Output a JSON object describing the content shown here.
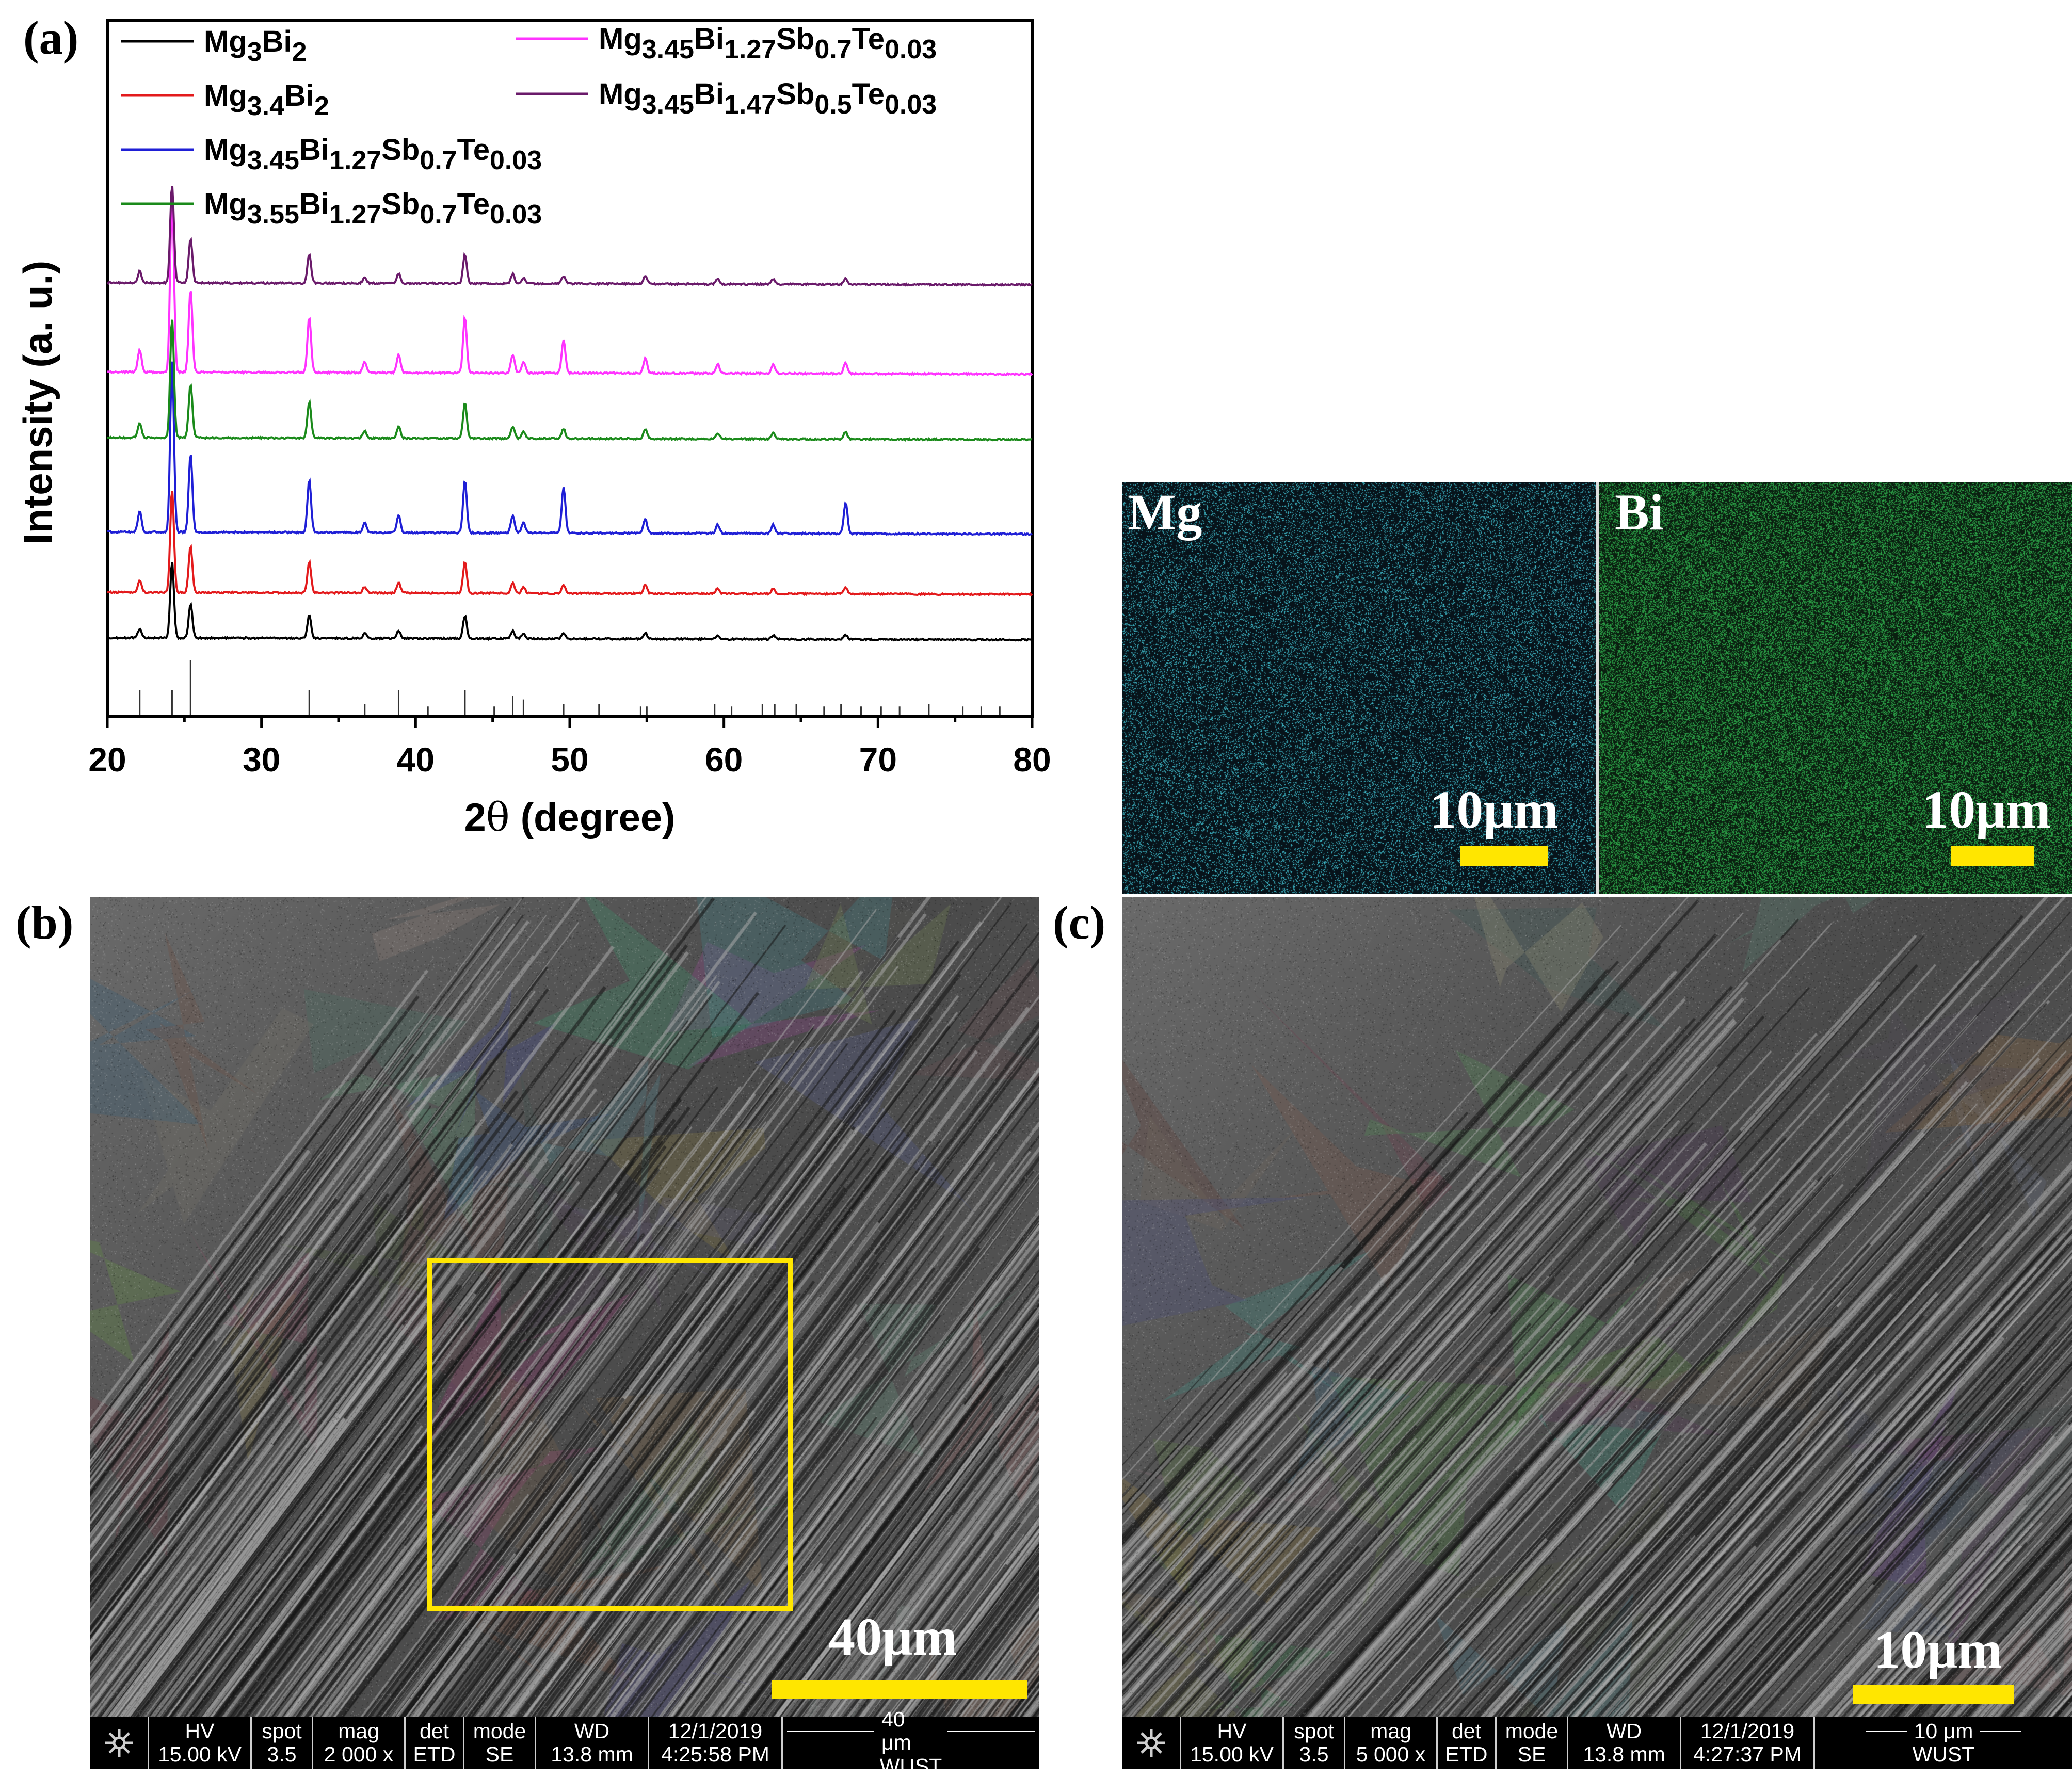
{
  "panels": {
    "a": "(a)",
    "b": "(b)",
    "c": "(c)"
  },
  "chart_data": {
    "type": "line",
    "xlabel_main": "2",
    "xlabel_theta": "θ",
    "xlabel_rest": " (degree)",
    "ylabel": "Intensity (a. u.)",
    "xlim": [
      20,
      80
    ],
    "xticks": [
      "20",
      "30",
      "40",
      "50",
      "60",
      "70",
      "80"
    ],
    "legend": [
      {
        "base": "Mg",
        "parts": [
          [
            "3",
            "sub"
          ],
          [
            "Bi",
            ""
          ],
          [
            "2",
            "sub"
          ]
        ],
        "color": "#000000"
      },
      {
        "base": "Mg",
        "parts": [
          [
            "3.4",
            "sub"
          ],
          [
            "Bi",
            ""
          ],
          [
            "2",
            "sub"
          ]
        ],
        "color": "#e31a1c"
      },
      {
        "base": "Mg",
        "parts": [
          [
            "3.45",
            "sub"
          ],
          [
            "Bi",
            ""
          ],
          [
            "1.27",
            "sub"
          ],
          [
            "Sb",
            ""
          ],
          [
            "0.7",
            "sub"
          ],
          [
            "Te",
            ""
          ],
          [
            "0.03",
            "sub"
          ]
        ],
        "color": "#1f1fd6"
      },
      {
        "base": "Mg",
        "parts": [
          [
            "3.55",
            "sub"
          ],
          [
            "Bi",
            ""
          ],
          [
            "1.27",
            "sub"
          ],
          [
            "Sb",
            ""
          ],
          [
            "0.7",
            "sub"
          ],
          [
            "Te",
            ""
          ],
          [
            "0.03",
            "sub"
          ]
        ],
        "color": "#1a8a1a"
      },
      {
        "base": "Mg",
        "parts": [
          [
            "3.45",
            "sub"
          ],
          [
            "Bi",
            ""
          ],
          [
            "1.27",
            "sub"
          ],
          [
            "Sb",
            ""
          ],
          [
            "0.7",
            "sub"
          ],
          [
            "Te",
            ""
          ],
          [
            "0.03",
            "sub"
          ]
        ],
        "color": "#ff33ff"
      },
      {
        "base": "Mg",
        "parts": [
          [
            "3.45",
            "sub"
          ],
          [
            "Bi",
            ""
          ],
          [
            "1.47",
            "sub"
          ],
          [
            "Sb",
            ""
          ],
          [
            "0.5",
            "sub"
          ],
          [
            "Te",
            ""
          ],
          [
            "0.03",
            "sub"
          ]
        ],
        "color": "#6a1a6a"
      }
    ],
    "peaks": [
      {
        "x": 22.1,
        "h": 0.12
      },
      {
        "x": 24.2,
        "h": 1.0
      },
      {
        "x": 25.4,
        "h": 0.45
      },
      {
        "x": 33.1,
        "h": 0.3
      },
      {
        "x": 36.7,
        "h": 0.06
      },
      {
        "x": 38.9,
        "h": 0.1
      },
      {
        "x": 43.2,
        "h": 0.3
      },
      {
        "x": 46.3,
        "h": 0.1
      },
      {
        "x": 47.0,
        "h": 0.06
      },
      {
        "x": 49.6,
        "h": 0.08
      },
      {
        "x": 54.9,
        "h": 0.08
      },
      {
        "x": 59.6,
        "h": 0.05
      },
      {
        "x": 63.2,
        "h": 0.05
      },
      {
        "x": 67.9,
        "h": 0.06
      }
    ],
    "series": [
      {
        "color": "#000000",
        "scale": 0.7,
        "extra": []
      },
      {
        "color": "#e31a1c",
        "scale": 0.95,
        "extra": []
      },
      {
        "color": "#1f1fd6",
        "scale": 1.6,
        "extra": [
          {
            "x": 49.6,
            "h": 0.18
          },
          {
            "x": 67.9,
            "h": 0.12
          }
        ]
      },
      {
        "color": "#1a8a1a",
        "scale": 1.1,
        "extra": []
      },
      {
        "color": "#ff33ff",
        "scale": 1.7,
        "extra": [
          {
            "x": 49.6,
            "h": 0.1
          }
        ]
      },
      {
        "color": "#6a1a6a",
        "scale": 0.9,
        "extra": []
      }
    ],
    "reference_sticks": [
      {
        "x": 22.1,
        "h": 0.45
      },
      {
        "x": 24.2,
        "h": 0.45
      },
      {
        "x": 25.4,
        "h": 1.0
      },
      {
        "x": 33.1,
        "h": 0.45
      },
      {
        "x": 36.7,
        "h": 0.2
      },
      {
        "x": 38.9,
        "h": 0.45
      },
      {
        "x": 40.8,
        "h": 0.15
      },
      {
        "x": 43.2,
        "h": 0.45
      },
      {
        "x": 45.1,
        "h": 0.15
      },
      {
        "x": 46.3,
        "h": 0.35
      },
      {
        "x": 47.0,
        "h": 0.28
      },
      {
        "x": 49.6,
        "h": 0.2
      },
      {
        "x": 51.9,
        "h": 0.2
      },
      {
        "x": 54.6,
        "h": 0.15
      },
      {
        "x": 55.0,
        "h": 0.15
      },
      {
        "x": 59.4,
        "h": 0.2
      },
      {
        "x": 60.5,
        "h": 0.15
      },
      {
        "x": 62.5,
        "h": 0.2
      },
      {
        "x": 63.3,
        "h": 0.2
      },
      {
        "x": 64.7,
        "h": 0.2
      },
      {
        "x": 66.5,
        "h": 0.15
      },
      {
        "x": 67.6,
        "h": 0.2
      },
      {
        "x": 68.9,
        "h": 0.15
      },
      {
        "x": 70.2,
        "h": 0.15
      },
      {
        "x": 71.4,
        "h": 0.15
      },
      {
        "x": 73.3,
        "h": 0.2
      },
      {
        "x": 75.5,
        "h": 0.15
      },
      {
        "x": 76.7,
        "h": 0.15
      },
      {
        "x": 77.9,
        "h": 0.15
      }
    ]
  },
  "maps": {
    "mg": {
      "label": "Mg",
      "scale": "10μm",
      "dot_color": "#3fb8c8"
    },
    "bi": {
      "label": "Bi",
      "scale": "10μm",
      "dot_color": "#2ea84a"
    }
  },
  "sem_b": {
    "scale": "40μm",
    "footer": {
      "hv_label": "HV",
      "hv": "15.00 kV",
      "spot_label": "spot",
      "spot": "3.5",
      "mag_label": "mag",
      "mag": "2 000 x",
      "det_label": "det",
      "det": "ETD",
      "mode_label": "mode",
      "mode": "SE",
      "wd_label": "WD",
      "wd": "13.8 mm",
      "date": "12/1/2019",
      "time": "4:25:58 PM",
      "bar_label": "40 μm",
      "org": "WUST"
    }
  },
  "sem_c": {
    "scale": "10μm",
    "footer": {
      "hv_label": "HV",
      "hv": "15.00 kV",
      "spot_label": "spot",
      "spot": "3.5",
      "mag_label": "mag",
      "mag": "5 000 x",
      "det_label": "det",
      "det": "ETD",
      "mode_label": "mode",
      "mode": "SE",
      "wd_label": "WD",
      "wd": "13.8 mm",
      "date": "12/1/2019",
      "time": "4:27:37 PM",
      "bar_label": "10 μm",
      "org": "WUST"
    }
  },
  "colors": {
    "scale_bar": "#ffe600",
    "highlight_box": "#ffe600"
  }
}
